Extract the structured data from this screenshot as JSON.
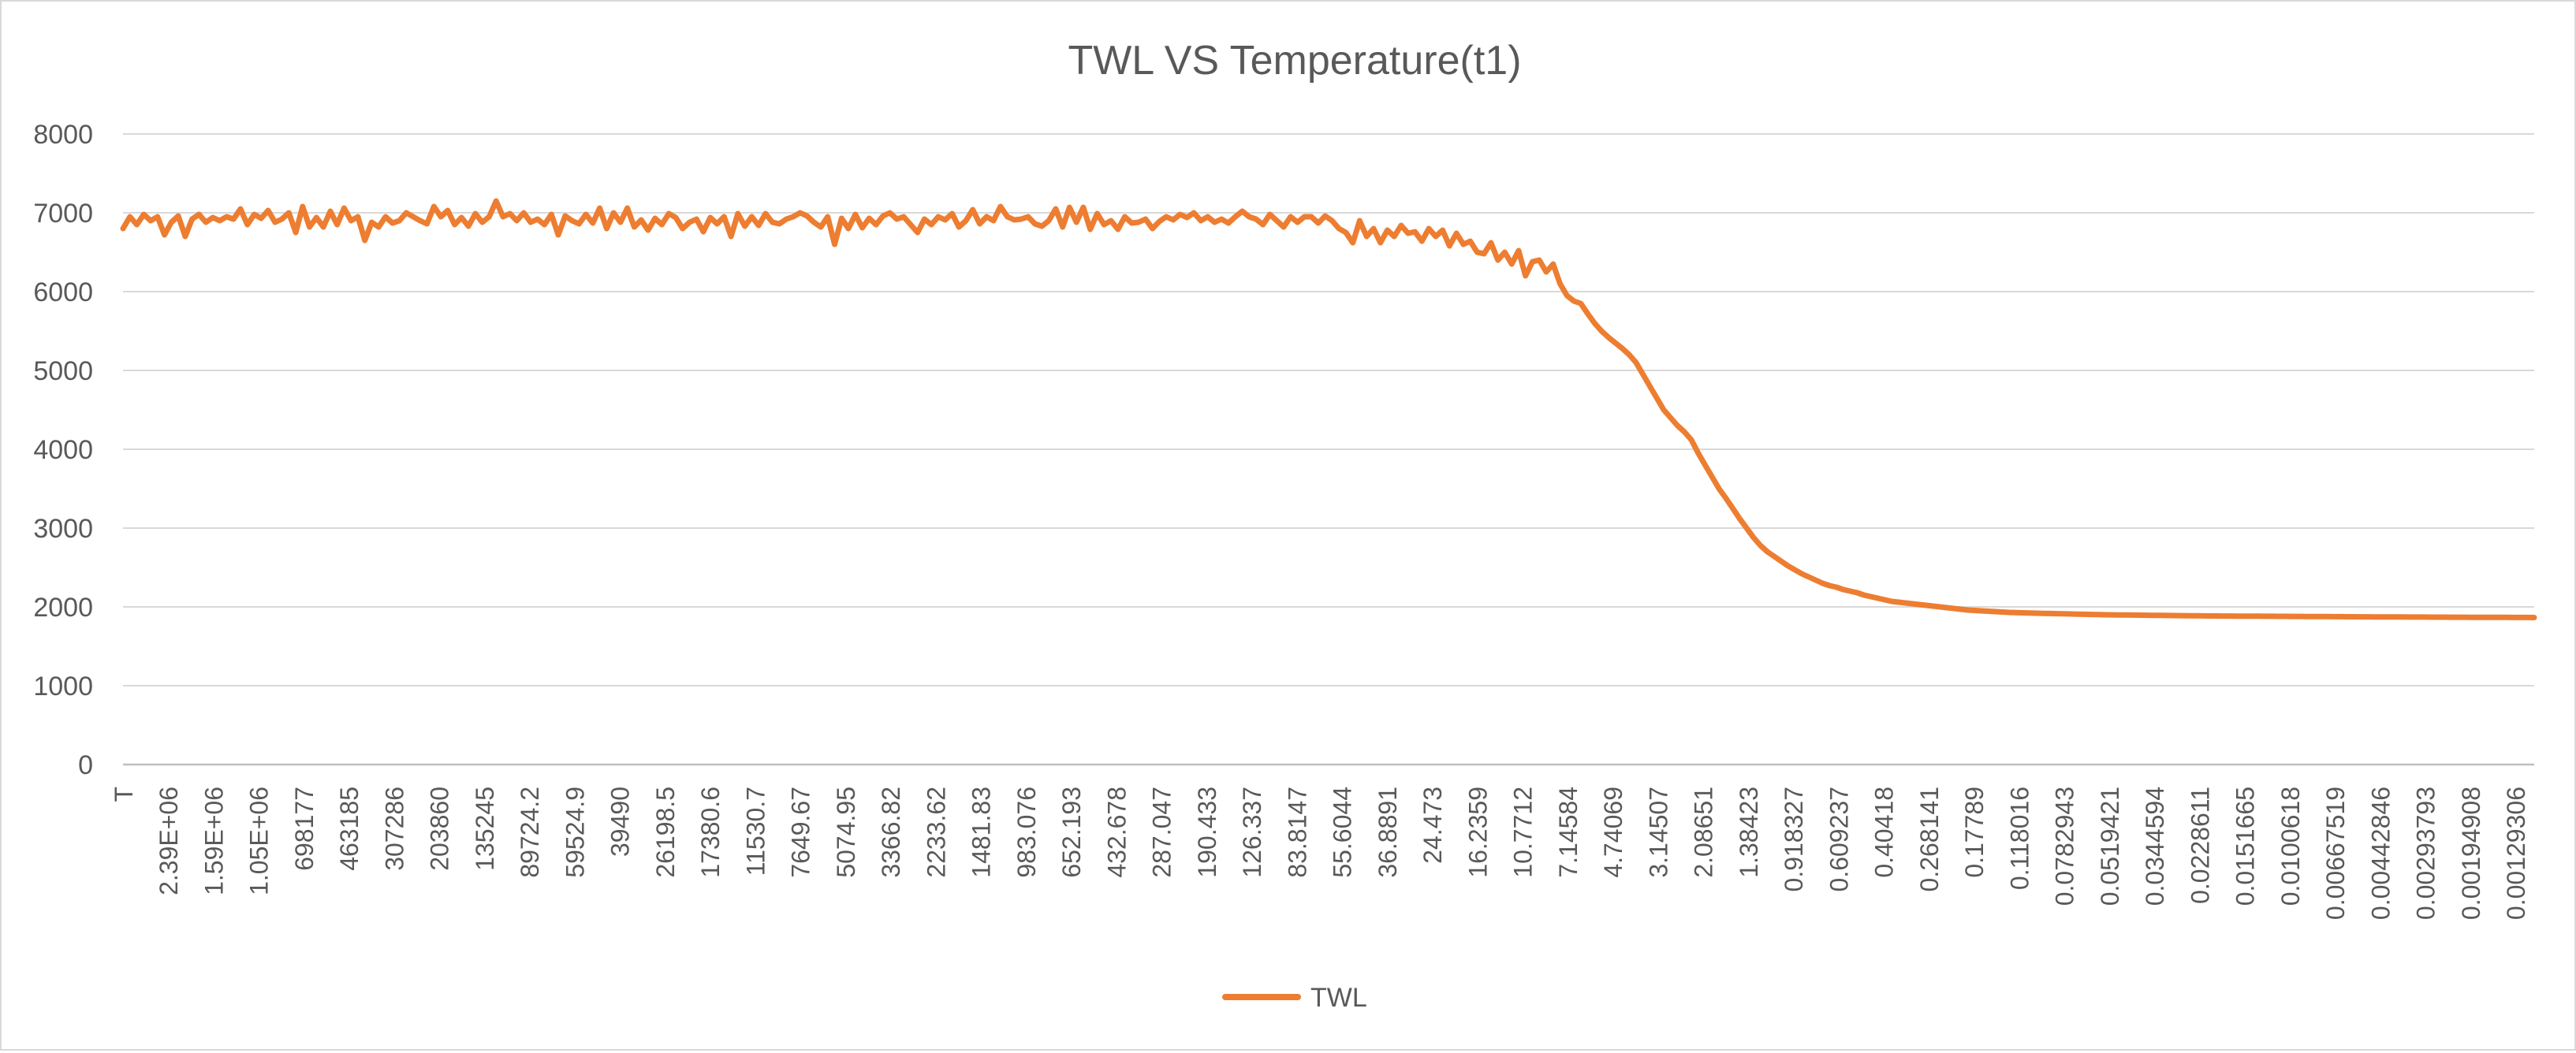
{
  "chart_data": {
    "type": "line",
    "title": "TWL VS Temperature(t1)",
    "xlabel": "",
    "ylabel": "",
    "ylim": [
      0,
      8000
    ],
    "yticks": [
      0,
      1000,
      2000,
      3000,
      4000,
      5000,
      6000,
      7000,
      8000
    ],
    "grid": true,
    "legend_position": "bottom",
    "x_tick_labels": [
      "T",
      "2.39E+06",
      "1.59E+06",
      "1.05E+06",
      "698177",
      "463185",
      "307286",
      "203860",
      "135245",
      "89724.2",
      "59524.9",
      "39490",
      "26198.5",
      "17380.6",
      "11530.7",
      "7649.67",
      "5074.95",
      "3366.82",
      "2233.62",
      "1481.83",
      "983.076",
      "652.193",
      "432.678",
      "287.047",
      "190.433",
      "126.337",
      "83.8147",
      "55.6044",
      "36.8891",
      "24.473",
      "16.2359",
      "10.7712",
      "7.14584",
      "4.74069",
      "3.14507",
      "2.08651",
      "1.38423",
      "0.918327",
      "0.609237",
      "0.40418",
      "0.268141",
      "0.17789",
      "0.118016",
      "0.0782943",
      "0.0519421",
      "0.0344594",
      "0.0228611",
      "0.0151665",
      "0.0100618",
      "0.00667519",
      "0.00442846",
      "0.00293793",
      "0.00194908",
      "0.00129306"
    ],
    "series": [
      {
        "name": "TWL",
        "color": "#ED7D31",
        "values": [
          6800,
          6950,
          6850,
          6980,
          6900,
          6950,
          6720,
          6880,
          6960,
          6700,
          6920,
          6980,
          6880,
          6940,
          6900,
          6950,
          6920,
          7050,
          6850,
          6980,
          6930,
          7030,
          6880,
          6920,
          7000,
          6750,
          7080,
          6820,
          6940,
          6820,
          7020,
          6850,
          7060,
          6900,
          6950,
          6650,
          6880,
          6820,
          6950,
          6870,
          6900,
          7000,
          6950,
          6900,
          6860,
          7080,
          6950,
          7030,
          6850,
          6940,
          6830,
          6990,
          6880,
          6950,
          7150,
          6950,
          6990,
          6900,
          7000,
          6880,
          6920,
          6850,
          6980,
          6720,
          6960,
          6900,
          6860,
          6980,
          6870,
          7060,
          6800,
          7000,
          6880,
          7060,
          6820,
          6910,
          6780,
          6930,
          6850,
          6990,
          6940,
          6800,
          6880,
          6920,
          6760,
          6940,
          6860,
          6950,
          6700,
          6990,
          6830,
          6950,
          6840,
          6990,
          6880,
          6860,
          6920,
          6950,
          7000,
          6960,
          6880,
          6820,
          6950,
          6600,
          6930,
          6800,
          6980,
          6810,
          6930,
          6850,
          6960,
          7000,
          6920,
          6950,
          6850,
          6750,
          6920,
          6850,
          6950,
          6910,
          6990,
          6820,
          6900,
          7040,
          6860,
          6950,
          6900,
          7080,
          6950,
          6910,
          6920,
          6950,
          6860,
          6830,
          6900,
          7050,
          6820,
          7070,
          6880,
          7070,
          6790,
          6990,
          6850,
          6900,
          6790,
          6950,
          6870,
          6880,
          6920,
          6800,
          6890,
          6950,
          6910,
          6980,
          6940,
          7000,
          6900,
          6950,
          6880,
          6920,
          6870,
          6950,
          7020,
          6950,
          6920,
          6850,
          6980,
          6900,
          6820,
          6950,
          6880,
          6950,
          6950,
          6870,
          6960,
          6900,
          6800,
          6750,
          6620,
          6900,
          6700,
          6800,
          6620,
          6780,
          6700,
          6840,
          6740,
          6760,
          6640,
          6800,
          6700,
          6780,
          6580,
          6740,
          6600,
          6640,
          6500,
          6480,
          6620,
          6400,
          6500,
          6350,
          6520,
          6200,
          6380,
          6400,
          6250,
          6350,
          6100,
          5950,
          5880,
          5850,
          5720,
          5600,
          5500,
          5420,
          5350,
          5280,
          5200,
          5100,
          4950,
          4800,
          4650,
          4500,
          4400,
          4300,
          4220,
          4120,
          3950,
          3800,
          3650,
          3500,
          3380,
          3250,
          3120,
          3000,
          2880,
          2780,
          2700,
          2640,
          2580,
          2520,
          2470,
          2420,
          2380,
          2340,
          2300,
          2270,
          2250,
          2220,
          2200,
          2180,
          2150,
          2130,
          2110,
          2090,
          2070,
          2060,
          2050,
          2040,
          2030,
          2020,
          2010,
          2000,
          1990,
          1980,
          1970,
          1960,
          1955,
          1950,
          1945,
          1940,
          1935,
          1930,
          1928,
          1925,
          1922,
          1920,
          1918,
          1916,
          1914,
          1912,
          1910,
          1908,
          1906,
          1904,
          1902,
          1900,
          1899,
          1898,
          1897,
          1896,
          1895,
          1894,
          1893,
          1892,
          1891,
          1890,
          1889,
          1888,
          1887,
          1886,
          1885,
          1885,
          1884,
          1884,
          1883,
          1883,
          1882,
          1882,
          1881,
          1881,
          1880,
          1880,
          1879,
          1879,
          1878,
          1878,
          1877,
          1877,
          1876,
          1876,
          1875,
          1875,
          1874,
          1874,
          1873,
          1873,
          1872,
          1872,
          1872,
          1871,
          1871,
          1871,
          1870,
          1870,
          1870,
          1869,
          1869,
          1869,
          1868,
          1868,
          1868,
          1867,
          1867,
          1867,
          1866,
          1866,
          1866,
          1865
        ]
      }
    ]
  }
}
